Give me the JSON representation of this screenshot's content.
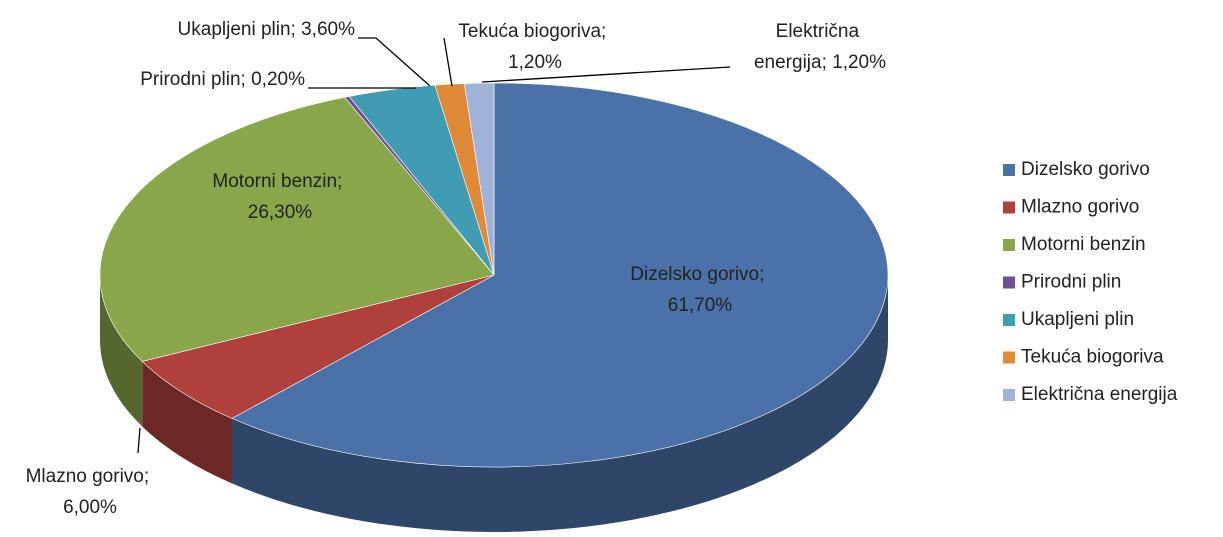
{
  "chart_data": {
    "type": "pie",
    "categories": [
      "Dizelsko gorivo",
      "Mlazno gorivo",
      "Motorni benzin",
      "Prirodni plin",
      "Ukapljeni plin",
      "Tekuća biogoriva",
      "Električna energija"
    ],
    "values": [
      61.7,
      6.0,
      26.3,
      0.2,
      3.6,
      1.2,
      1.2
    ],
    "value_labels": [
      "Dizelsko gorivo; 61,70%",
      "Mlazno gorivo; 6,00%",
      "Motorni benzin; 26,30%",
      "Prirodni plin; 0,20%",
      "Ukapljeni plin; 3,60%",
      "Tekuća biogoriva; 1,20%",
      "Električna energija; 1,20%"
    ],
    "colors": [
      "#4a72a8",
      "#b0403c",
      "#8aa64a",
      "#6e4f8f",
      "#3f9cb3",
      "#e08a38",
      "#9fb3d9"
    ],
    "legend": "right"
  }
}
